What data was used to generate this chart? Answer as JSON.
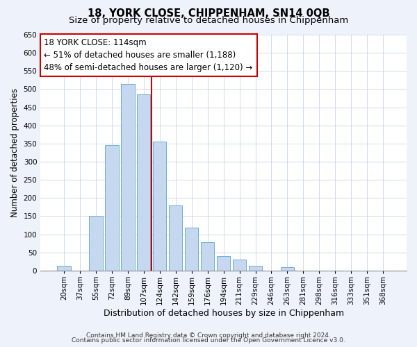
{
  "title": "18, YORK CLOSE, CHIPPENHAM, SN14 0QB",
  "subtitle": "Size of property relative to detached houses in Chippenham",
  "xlabel": "Distribution of detached houses by size in Chippenham",
  "ylabel": "Number of detached properties",
  "bin_labels": [
    "20sqm",
    "37sqm",
    "55sqm",
    "72sqm",
    "89sqm",
    "107sqm",
    "124sqm",
    "142sqm",
    "159sqm",
    "176sqm",
    "194sqm",
    "211sqm",
    "229sqm",
    "246sqm",
    "263sqm",
    "281sqm",
    "298sqm",
    "316sqm",
    "333sqm",
    "351sqm",
    "368sqm"
  ],
  "bar_values": [
    14,
    0,
    150,
    345,
    515,
    485,
    355,
    180,
    118,
    78,
    40,
    30,
    14,
    0,
    10,
    0,
    0,
    0,
    0,
    0,
    0
  ],
  "bar_color": "#c5d8f0",
  "bar_edge_color": "#6baed6",
  "ylim": [
    0,
    650
  ],
  "yticks": [
    0,
    50,
    100,
    150,
    200,
    250,
    300,
    350,
    400,
    450,
    500,
    550,
    600,
    650
  ],
  "vline_x": 5.5,
  "vline_color": "#cc0000",
  "annotation_title": "18 YORK CLOSE: 114sqm",
  "annotation_line1": "← 51% of detached houses are smaller (1,188)",
  "annotation_line2": "48% of semi-detached houses are larger (1,120) →",
  "annotation_box_facecolor": "#ffffff",
  "annotation_box_edgecolor": "#cc0000",
  "footer_line1": "Contains HM Land Registry data © Crown copyright and database right 2024.",
  "footer_line2": "Contains public sector information licensed under the Open Government Licence v3.0.",
  "background_color": "#eef2fa",
  "plot_bg_color": "#ffffff",
  "title_fontsize": 10.5,
  "subtitle_fontsize": 9.5,
  "xlabel_fontsize": 9,
  "ylabel_fontsize": 8.5,
  "tick_fontsize": 7.5,
  "annotation_fontsize": 8.5,
  "footer_fontsize": 6.5
}
